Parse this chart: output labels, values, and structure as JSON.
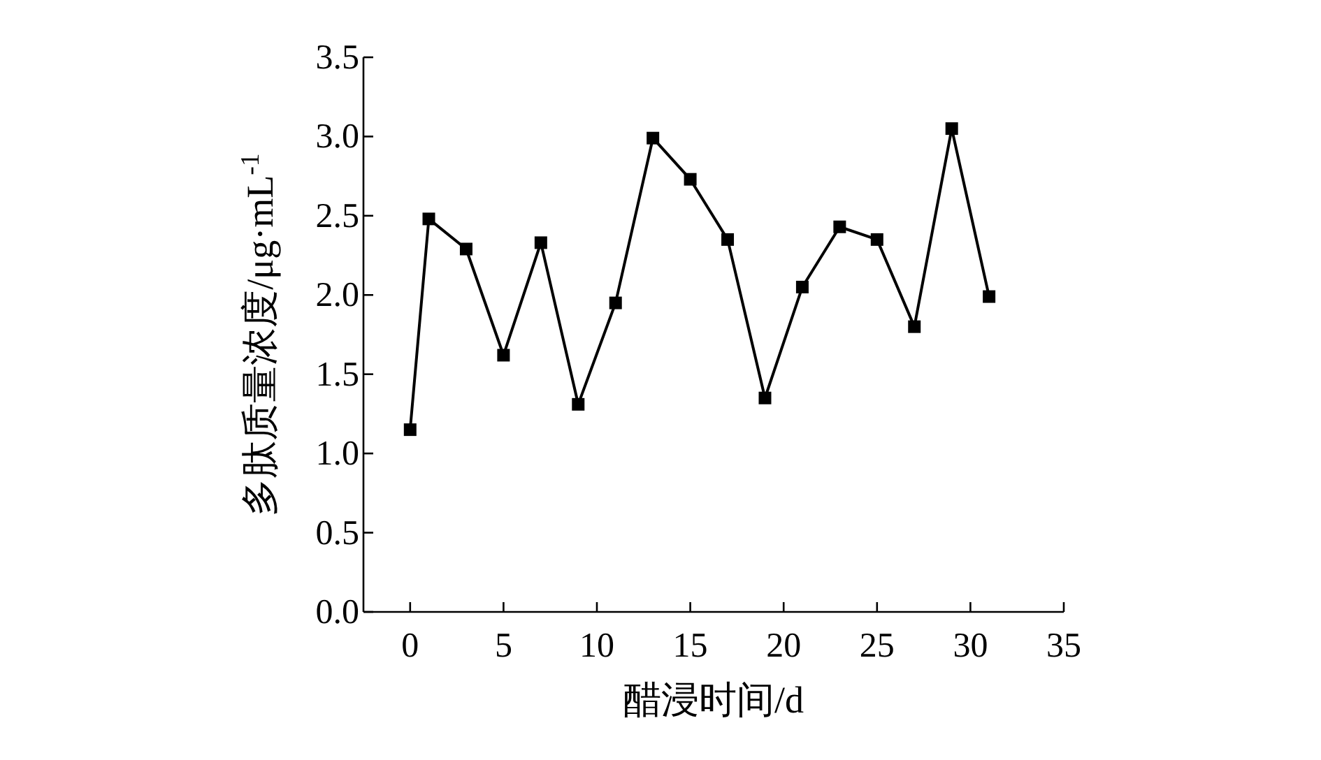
{
  "chart_data": {
    "type": "line",
    "xlabel": "醋浸时间/d",
    "ylabel": "多肽质量浓度/μg·mL$^{-1}$",
    "x": [
      0,
      1,
      3,
      5,
      7,
      9,
      11,
      13,
      15,
      17,
      19,
      21,
      23,
      25,
      27,
      29,
      31
    ],
    "values": [
      1.15,
      2.48,
      2.29,
      1.62,
      2.33,
      1.31,
      1.95,
      2.99,
      2.73,
      2.35,
      1.35,
      2.05,
      2.43,
      2.35,
      1.8,
      3.05,
      1.99
    ],
    "color": "#000000",
    "marker": "square",
    "line_style": "solid",
    "grid": false,
    "xlim": [
      -2.5,
      35
    ],
    "ylim": [
      0,
      3.5
    ],
    "xticks": [
      0,
      5,
      10,
      15,
      20,
      25,
      30,
      35
    ],
    "yticks": [
      {
        "value": 0,
        "label": "0.0"
      },
      {
        "value": 0.5,
        "label": "0.5"
      },
      {
        "value": 1,
        "label": "1.0"
      },
      {
        "value": 1.5,
        "label": "1.5"
      },
      {
        "value": 2,
        "label": "2.0"
      },
      {
        "value": 2.5,
        "label": "2.5"
      },
      {
        "value": 3,
        "label": "3.0"
      },
      {
        "value": 3.5,
        "label": "3.5"
      }
    ]
  }
}
